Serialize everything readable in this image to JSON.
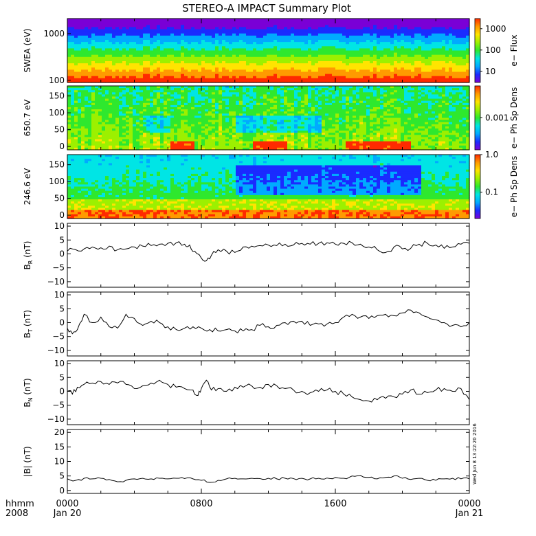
{
  "title": "STEREO-A IMPACT Summary Plot",
  "side_stamp": "Wed Jun  8 13:22:20 2016",
  "time_axis": {
    "row1_label": "hhmm",
    "row2_label": "2008",
    "ticks": [
      {
        "time": "0000",
        "date": "Jan 20",
        "hour": 0
      },
      {
        "time": "0800",
        "date": "",
        "hour": 8
      },
      {
        "time": "1600",
        "date": "",
        "hour": 16
      },
      {
        "time": "0000",
        "date": "Jan 21",
        "hour": 24
      }
    ],
    "range_hours": [
      0,
      24
    ]
  },
  "colors": {
    "spectrogram": [
      "#7a00d6",
      "#1a2bff",
      "#00aaff",
      "#00e5e5",
      "#2ee82e",
      "#9cf000",
      "#ffe400",
      "#ff9a00",
      "#ff2a00"
    ]
  },
  "chart_data": [
    {
      "type": "heatmap",
      "ylabel": "SWEA (eV)",
      "yscale": "log",
      "yticks": [
        "1000",
        "100"
      ],
      "ylim": [
        90,
        2100
      ],
      "colorbar": {
        "label": "e− Flux",
        "scale": "log",
        "ticks": [
          "1000",
          "100",
          "10"
        ],
        "range": [
          3,
          3000
        ]
      },
      "description_bands_eV": [
        [
          90,
          280,
          3000
        ],
        [
          280,
          600,
          300
        ],
        [
          600,
          1000,
          80
        ],
        [
          1000,
          1500,
          20
        ],
        [
          1500,
          2100,
          5
        ]
      ]
    },
    {
      "type": "heatmap",
      "ylabel": "650.7 eV",
      "yticks": [
        "150",
        "100",
        "50",
        "0"
      ],
      "ylim": [
        -10,
        180
      ],
      "colorbar": {
        "label": "e− Ph Sp Dens",
        "scale": "log",
        "ticks": [
          "0.001"
        ],
        "range": [
          0.0001,
          0.01
        ]
      }
    },
    {
      "type": "heatmap",
      "ylabel": "246.6 eV",
      "yticks": [
        "150",
        "100",
        "50",
        "0"
      ],
      "ylim": [
        -10,
        180
      ],
      "colorbar": {
        "label": "e− Ph Sp Dens",
        "scale": "log",
        "ticks": [
          "1.0",
          "0.1"
        ],
        "range": [
          0.02,
          1.0
        ]
      }
    },
    {
      "type": "line",
      "ylabel_main": "B",
      "ylabel_sub": "R",
      "ylabel_unit": " (nT)",
      "yticks": [
        "10",
        "5",
        "0",
        "−5",
        "−10"
      ],
      "ylim": [
        -12,
        11
      ],
      "x": [
        0,
        0.5,
        1,
        1.5,
        2,
        2.5,
        3,
        3.5,
        4,
        4.5,
        5,
        5.5,
        6,
        6.5,
        7,
        7.3,
        7.6,
        8,
        8.3,
        8.6,
        9,
        9.5,
        10,
        10.5,
        11,
        11.5,
        12,
        12.5,
        13,
        13.5,
        14,
        14.5,
        15,
        15.5,
        16,
        16.5,
        17,
        17.5,
        18,
        18.5,
        19,
        19.5,
        20,
        20.5,
        21,
        21.5,
        22,
        22.5,
        23,
        23.5,
        24
      ],
      "values": [
        1,
        1.5,
        1.8,
        2.5,
        2.2,
        2.8,
        1.5,
        1.8,
        2.5,
        2.8,
        3,
        3.5,
        3.8,
        4,
        3.5,
        3.2,
        1,
        -1.5,
        -2.5,
        -0.5,
        1.5,
        1,
        0.5,
        2.5,
        2.8,
        3,
        3.2,
        3,
        3.5,
        3.2,
        3.8,
        3.5,
        3.8,
        4,
        3.5,
        3.8,
        4,
        3.5,
        2.5,
        1.5,
        0.5,
        2.5,
        1.8,
        2,
        3.5,
        3.8,
        3.2,
        2,
        2.5,
        3.5,
        3.8
      ]
    },
    {
      "type": "line",
      "ylabel_main": "B",
      "ylabel_sub": "T",
      "ylabel_unit": " (nT)",
      "yticks": [
        "10",
        "5",
        "0",
        "−5",
        "−10"
      ],
      "ylim": [
        -12,
        11
      ],
      "x": [
        0,
        0.3,
        0.6,
        1,
        1.5,
        2,
        2.5,
        3,
        3.5,
        4,
        4.5,
        5,
        5.5,
        6,
        6.5,
        7,
        7.5,
        8,
        8.5,
        9,
        9.5,
        10,
        10.5,
        11,
        11.5,
        12,
        12.5,
        13,
        13.5,
        14,
        14.5,
        15,
        15.5,
        16,
        16.5,
        17,
        17.5,
        18,
        18.5,
        19,
        19.5,
        20,
        20.5,
        21,
        21.5,
        22,
        22.5,
        23,
        23.5,
        24
      ],
      "values": [
        -2,
        -4,
        -2.5,
        3,
        0,
        2,
        -1.5,
        -2,
        3,
        1.5,
        -1,
        0.5,
        0,
        -1.5,
        -2.5,
        -2,
        -1.5,
        -2,
        -2.5,
        -3,
        -2.5,
        -3,
        -3,
        -2.5,
        -1,
        -1.5,
        -1,
        0,
        0.5,
        0.5,
        -1,
        -0.5,
        -0.5,
        0,
        2,
        3,
        2,
        1.5,
        2.5,
        3,
        2.5,
        3.5,
        4.5,
        3.5,
        2,
        1,
        0,
        -1,
        -1.5,
        0
      ]
    },
    {
      "type": "line",
      "ylabel_main": "B",
      "ylabel_sub": "N",
      "ylabel_unit": " (nT)",
      "yticks": [
        "10",
        "5",
        "0",
        "−5",
        "−10"
      ],
      "ylim": [
        -12,
        11
      ],
      "x": [
        0,
        0.3,
        0.6,
        1,
        1.5,
        2,
        2.5,
        3,
        3.5,
        4,
        4.5,
        5,
        5.5,
        6,
        6.5,
        7,
        7.5,
        7.8,
        8,
        8.3,
        8.6,
        9,
        9.5,
        10,
        10.5,
        11,
        11.5,
        12,
        12.5,
        13,
        13.5,
        14,
        14.5,
        15,
        15.5,
        16,
        16.5,
        17,
        17.5,
        18,
        18.5,
        19,
        19.5,
        20,
        20.5,
        21,
        21.5,
        22,
        22.5,
        23,
        23.5,
        24
      ],
      "values": [
        0,
        -1,
        1.5,
        2.5,
        3,
        3.5,
        2.5,
        3,
        2.5,
        1,
        2,
        3,
        4,
        2.5,
        1.5,
        1,
        0.5,
        -1.5,
        1,
        4,
        0.5,
        1,
        0,
        1.5,
        1.5,
        2,
        1.5,
        2.5,
        2,
        1,
        0.5,
        0,
        -0.5,
        0,
        0.5,
        0,
        -1,
        -2,
        -3,
        -3.5,
        -3,
        -2.5,
        -2,
        -1,
        0.5,
        -1,
        -0.5,
        0.5,
        1,
        0,
        1,
        -3
      ]
    },
    {
      "type": "line",
      "ylabel_main": "|B|",
      "ylabel_sub": "",
      "ylabel_unit": " (nT)",
      "yticks": [
        "20",
        "15",
        "10",
        "5",
        "0"
      ],
      "ylim": [
        -1,
        21
      ],
      "x": [
        0,
        0.5,
        1,
        1.5,
        2,
        2.5,
        3,
        3.5,
        4,
        4.5,
        5,
        5.5,
        6,
        6.5,
        7,
        7.5,
        8,
        8.5,
        9,
        9.5,
        10,
        10.5,
        11,
        11.5,
        12,
        12.5,
        13,
        13.5,
        14,
        14.5,
        15,
        15.5,
        16,
        16.5,
        17,
        17.5,
        18,
        18.5,
        19,
        19.5,
        20,
        20.5,
        21,
        21.5,
        22,
        22.5,
        23,
        23.5,
        24
      ],
      "values": [
        4,
        3.5,
        4.2,
        4,
        4.2,
        3.8,
        3,
        3.5,
        4,
        4.2,
        4,
        4.2,
        4,
        4.2,
        4.1,
        4,
        3.5,
        2.8,
        3.5,
        4,
        4.2,
        4,
        4.2,
        4.1,
        4.2,
        4,
        4.2,
        4.1,
        4.2,
        4,
        4.2,
        4.3,
        4.5,
        4.2,
        5,
        5.2,
        4.5,
        4,
        4.5,
        5,
        4.2,
        3.8,
        4.2,
        3.5,
        3.5,
        4,
        4.2,
        4,
        4
      ]
    }
  ]
}
